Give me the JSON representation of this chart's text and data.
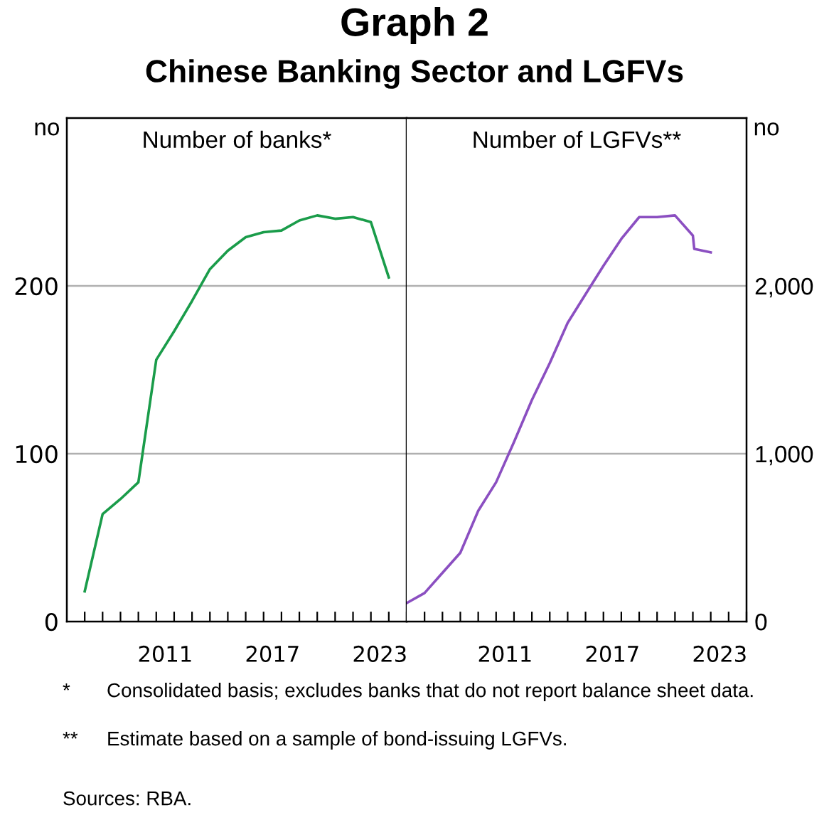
{
  "chart_data": [
    {
      "type": "line",
      "title": "Number of banks*",
      "ylabel": "no",
      "annotations": [
        "Graph 2",
        "Chinese Banking Sector and LGFVs",
        "* Consolidated basis; excludes banks that do not report balance sheet data.",
        "** Estimate based on a sample of bond-issuing LGFVs.",
        "Sources: RBA."
      ],
      "x": [
        2006.5,
        2007.5,
        2008.5,
        2009.5,
        2010.5,
        2011.5,
        2012.5,
        2013.5,
        2014.5,
        2015.5,
        2016.5,
        2017.5,
        2018.5,
        2019.5,
        2020.5,
        2021.5,
        2022.5,
        2023.5
      ],
      "series": [
        {
          "color": "#1a9c4a",
          "values": [
            18,
            64,
            73,
            83,
            156,
            173,
            191,
            210,
            221,
            229,
            232,
            233,
            239,
            242,
            240,
            241,
            238,
            205
          ]
        }
      ],
      "xlim": [
        2005.5,
        2024.5
      ],
      "ylim": [
        0,
        300
      ],
      "yticks": [
        0,
        100,
        200
      ],
      "xticks": [
        {
          "value": 2006.5,
          "label": null
        },
        {
          "value": 2007.5,
          "label": null
        },
        {
          "value": 2008.5,
          "label": null
        },
        {
          "value": 2009.5,
          "label": null
        },
        {
          "value": 2010.5,
          "label": null
        },
        {
          "value": 2011.5,
          "label": null
        },
        {
          "value": 2012.5,
          "label": null
        },
        {
          "value": 2013.5,
          "label": null
        },
        {
          "value": 2014.5,
          "label": null
        },
        {
          "value": 2015.5,
          "label": null
        },
        {
          "value": 2016.5,
          "label": null
        },
        {
          "value": 2017.5,
          "label": null
        },
        {
          "value": 2018.5,
          "label": null
        },
        {
          "value": 2019.5,
          "label": null
        },
        {
          "value": 2020.5,
          "label": null
        },
        {
          "value": 2021.5,
          "label": null
        },
        {
          "value": 2022.5,
          "label": null
        },
        {
          "value": 2023.5,
          "label": null
        },
        {
          "value": 2024.5,
          "label": null
        },
        2011,
        2017,
        2023
      ],
      "grid": "y"
    },
    {
      "type": "line",
      "title": "Number of LGFVs**",
      "y2label": "no",
      "x": [
        2005.5,
        2006.5,
        2007.5,
        2008.5,
        2009.5,
        2010.5,
        2011.5,
        2012.5,
        2013.5,
        2014.5,
        2015.5,
        2016.5,
        2017.5,
        2018.5,
        2019.5,
        2020.5,
        2021.5,
        2021.58,
        2022.5
      ],
      "series": [
        {
          "color": "#8b4fc1",
          "axis": "y2",
          "values": [
            110,
            170,
            290,
            410,
            660,
            830,
            1070,
            1320,
            1540,
            1780,
            1950,
            2120,
            2280,
            2410,
            2410,
            2420,
            2300,
            2220,
            2200
          ]
        }
      ],
      "xlim": [
        2005.5,
        2024.5
      ],
      "y2lim": [
        0,
        3000
      ],
      "y2ticks": [
        0,
        {
          "value": 1000,
          "label": "1,000"
        },
        {
          "value": 2000,
          "label": "2,000"
        }
      ],
      "xticks": [
        {
          "value": 2006.5,
          "label": null
        },
        {
          "value": 2007.5,
          "label": null
        },
        {
          "value": 2008.5,
          "label": null
        },
        {
          "value": 2009.5,
          "label": null
        },
        {
          "value": 2010.5,
          "label": null
        },
        {
          "value": 2011.5,
          "label": null
        },
        {
          "value": 2012.5,
          "label": null
        },
        {
          "value": 2013.5,
          "label": null
        },
        {
          "value": 2014.5,
          "label": null
        },
        {
          "value": 2015.5,
          "label": null
        },
        {
          "value": 2016.5,
          "label": null
        },
        {
          "value": 2017.5,
          "label": null
        },
        {
          "value": 2018.5,
          "label": null
        },
        {
          "value": 2019.5,
          "label": null
        },
        {
          "value": 2020.5,
          "label": null
        },
        {
          "value": 2021.5,
          "label": null
        },
        {
          "value": 2022.5,
          "label": null
        },
        {
          "value": 2023.5,
          "label": null
        },
        {
          "value": 2024.5,
          "label": null
        },
        2011,
        2017,
        2023
      ],
      "grid": "y"
    }
  ]
}
